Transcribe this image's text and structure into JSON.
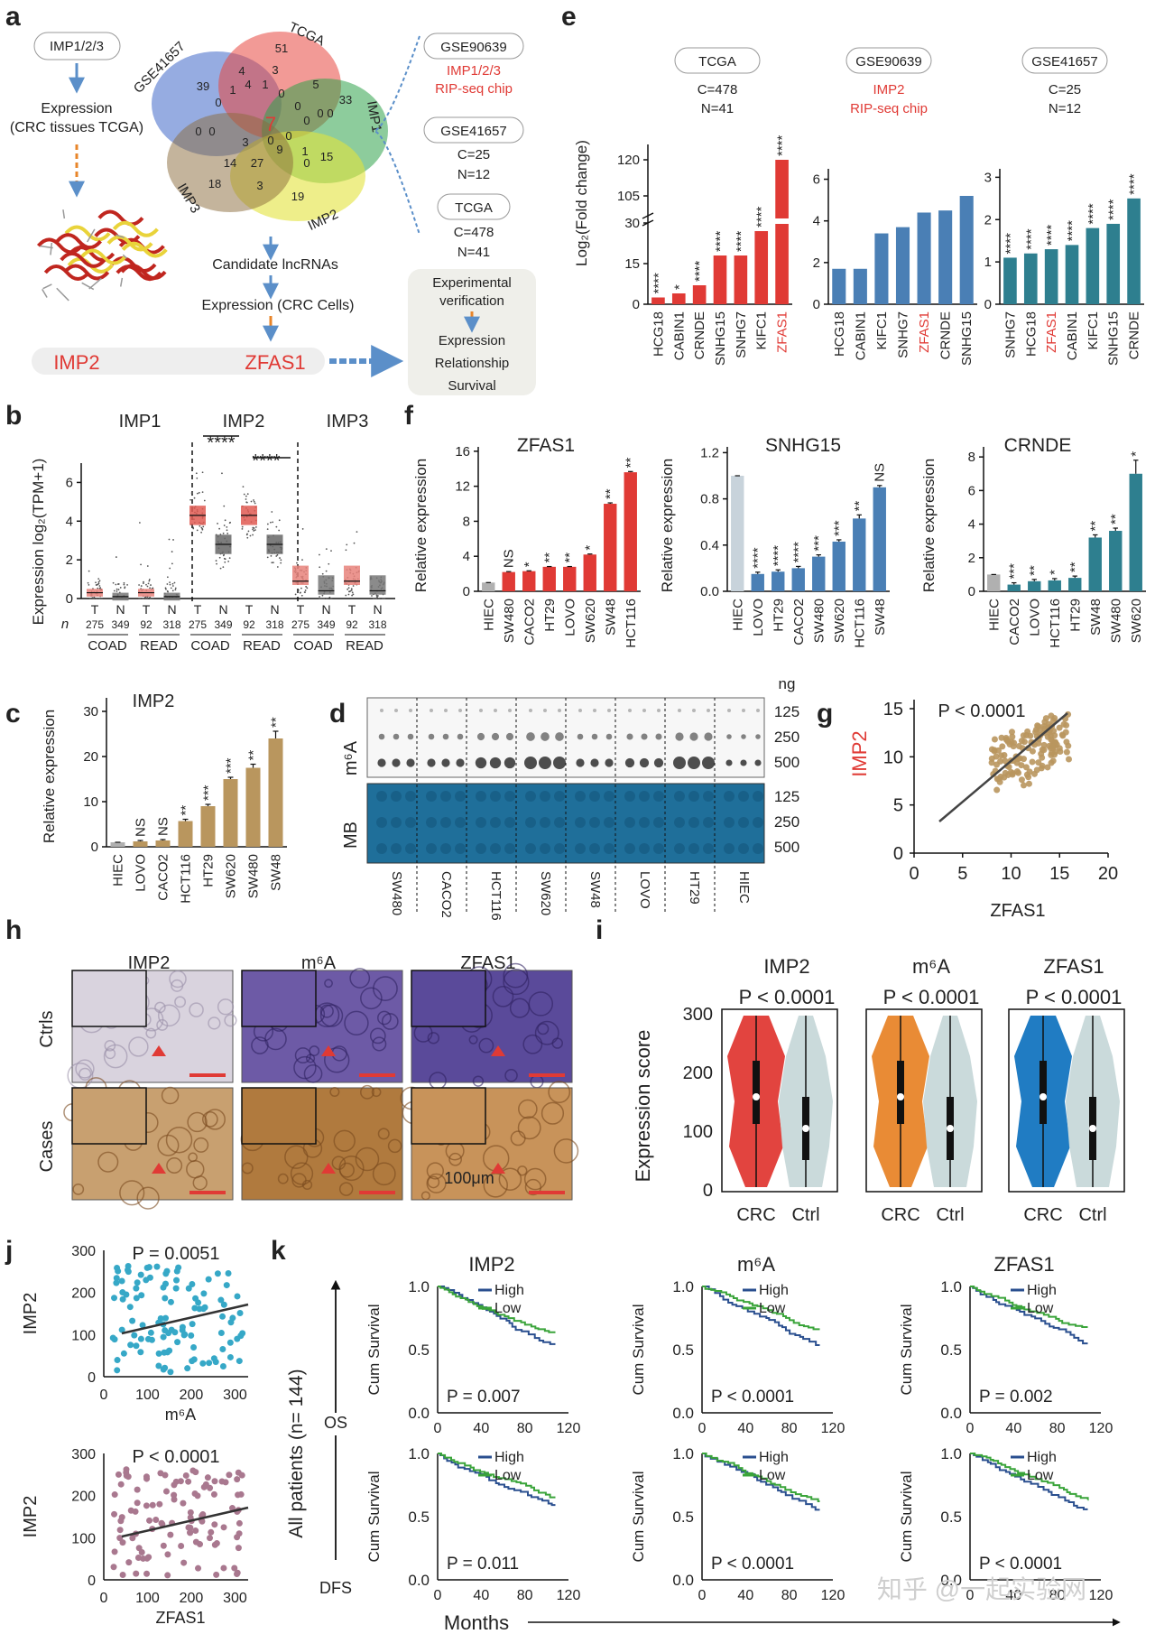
{
  "panels": [
    "a",
    "b",
    "c",
    "d",
    "e",
    "f",
    "g",
    "h",
    "i",
    "j",
    "k"
  ],
  "a": {
    "imp_box": "IMP1/2/3",
    "expression": "Expression",
    "expression_sub": "(CRC tissues TCGA)",
    "venn_labels": {
      "gse": "GSE41657",
      "tcga": "TCGA",
      "imp1": "IMP1",
      "imp2": "IMP2",
      "imp3": "IMP3"
    },
    "venn_numbers": [
      "39",
      "4",
      "51",
      "3",
      "5",
      "33",
      "0",
      "1",
      "4",
      "1",
      "0",
      "0",
      "0",
      "0",
      "0",
      "0",
      "7",
      "0",
      "0",
      "3",
      "9",
      "1",
      "15",
      "14",
      "27",
      "0",
      "18",
      "3",
      "0",
      "19"
    ],
    "candidate": "Candidate lncRNAs",
    "expression_cells": "Expression (CRC Cells)",
    "left_gene": "IMP2",
    "right_gene": "ZFAS1",
    "sources": {
      "gse90639": "GSE90639",
      "gse90639_note1": "IMP1/2/3",
      "gse90639_note2": "RIP-seq chip",
      "gse41657": "GSE41657",
      "gse41657_c": "C=25",
      "gse41657_n": "N=12",
      "tcga": "TCGA",
      "tcga_c": "C=478",
      "tcga_n": "N=41"
    },
    "verify_title1": "Experimental",
    "verify_title2": "verification",
    "verify_items": [
      "Expression",
      "Relationship",
      "Survival"
    ]
  },
  "e": {
    "ylabel": "Log₂(Fold change)",
    "heads": [
      {
        "title": "TCGA",
        "l1": "C=478",
        "l2": "N=41"
      },
      {
        "title": "GSE90639",
        "l1": "IMP2",
        "l2": "RIP-seq chip"
      },
      {
        "title": "GSE41657",
        "l1": "C=25",
        "l2": "N=12"
      }
    ],
    "y_ticks_1": [
      "0",
      "15",
      "30",
      "105",
      "120"
    ],
    "y_ticks_2": [
      "0",
      "2",
      "4",
      "6"
    ],
    "y_ticks_3": [
      "0",
      "1",
      "2",
      "3"
    ]
  },
  "b": {
    "titles": [
      "IMP1",
      "IMP2",
      "IMP3"
    ],
    "ylabel": "Expression log₂(TPM+1)",
    "y_ticks": [
      "0",
      "2",
      "4",
      "6"
    ],
    "n_label": "n",
    "tn": [
      "T",
      "N",
      "T",
      "N",
      "T",
      "N",
      "T",
      "N",
      "T",
      "N",
      "T",
      "N"
    ],
    "ns": [
      "275",
      "349",
      "92",
      "318",
      "275",
      "349",
      "92",
      "318",
      "275",
      "349",
      "92",
      "318"
    ],
    "groups": [
      "COAD",
      "READ",
      "COAD",
      "READ",
      "COAD",
      "READ"
    ],
    "sig": "****"
  },
  "c": {
    "title": "IMP2",
    "ylabel": "Relative expression",
    "y_ticks": [
      "0",
      "10",
      "20",
      "30"
    ]
  },
  "d": {
    "unit": "ng",
    "conc": [
      "125",
      "250",
      "500"
    ],
    "row1": "m⁶A",
    "row2": "MB",
    "lanes": [
      "SW480",
      "CACO2",
      "HCT116",
      "SW620",
      "SW48",
      "LOVO",
      "HT29",
      "HIEC"
    ]
  },
  "f": {
    "titles": [
      "ZFAS1",
      "SNHG15",
      "CRNDE"
    ],
    "ylabel": "Relative expression",
    "y_ticks_1": [
      "0",
      "4",
      "8",
      "12",
      "16"
    ],
    "y_ticks_2": [
      "0.0",
      "0.4",
      "0.8",
      "1.2"
    ],
    "y_ticks_3": [
      "0",
      "2",
      "4",
      "6",
      "8"
    ]
  },
  "g": {
    "p": "P < 0.0001",
    "ylabel": "IMP2",
    "xlabel": "ZFAS1",
    "x_ticks": [
      "0",
      "5",
      "10",
      "15",
      "20"
    ],
    "y_ticks": [
      "0",
      "5",
      "10",
      "15"
    ]
  },
  "h": {
    "cols": [
      "IMP2",
      "m⁶A",
      "ZFAS1"
    ],
    "rows": [
      "Ctrls",
      "Cases"
    ],
    "scale": "100μm"
  },
  "i": {
    "titles": [
      "IMP2",
      "m⁶A",
      "ZFAS1"
    ],
    "p": "P < 0.0001",
    "ylabel": "Expression score",
    "y_ticks": [
      "0",
      "100",
      "200",
      "300"
    ],
    "x": [
      "CRC",
      "Ctrl"
    ]
  },
  "j": {
    "p1": "P = 0.0051",
    "p2": "P < 0.0001",
    "ylabel": "IMP2",
    "xlabel1": "m⁶A",
    "xlabel2": "ZFAS1",
    "x_ticks": [
      "0",
      "100",
      "200",
      "300"
    ],
    "y_ticks": [
      "0",
      "100",
      "200",
      "300"
    ]
  },
  "k": {
    "titles": [
      "IMP2",
      "m⁶A",
      "ZFAS1"
    ],
    "legend": [
      "High",
      "Low"
    ],
    "ylabel": "Cum Survival",
    "y_ticks": [
      "0.0",
      "0.5",
      "1.0"
    ],
    "x_ticks": [
      "0",
      "40",
      "80",
      "120"
    ],
    "pvals_os": [
      "P = 0.007",
      "P < 0.0001",
      "P = 0.002"
    ],
    "pvals_dfs": [
      "P = 0.011",
      "P < 0.0001",
      "P < 0.0001"
    ],
    "side_label": "All patients (n= 144)",
    "os": "OS",
    "dfs": "DFS",
    "months": "Months"
  },
  "watermark": "知乎 @一起实验网",
  "colors": {
    "red": "#e03a35",
    "blue": "#4a7fb5",
    "teal": "#2e7f8f",
    "tan": "#b9965e",
    "grey": "#7d7d7d",
    "dark_blue": "#2a4f8f",
    "green": "#3aa43a",
    "orange": "#e8852a",
    "violet_blue": "#1475c0"
  },
  "chart_data": [
    {
      "panel": "e",
      "type": "bar",
      "title": "TCGA",
      "categories": [
        "HCG18",
        "CABIN1",
        "CRNDE",
        "SNHG15",
        "SNHG7",
        "KIFC1",
        "ZFAS1"
      ],
      "values": [
        2.5,
        4,
        7,
        18,
        18,
        27,
        120
      ],
      "ylabel": "Log₂(Fold change)",
      "annotations": [
        "****",
        "*",
        "****",
        "****",
        "****",
        "****",
        "****"
      ]
    },
    {
      "panel": "e",
      "type": "bar",
      "title": "GSE90639",
      "categories": [
        "HCG18",
        "CABIN1",
        "KIFC1",
        "SNHG7",
        "ZFAS1",
        "CRNDE",
        "SNHG15"
      ],
      "values": [
        1.7,
        1.7,
        3.4,
        3.7,
        4.4,
        4.5,
        5.2
      ]
    },
    {
      "panel": "e",
      "type": "bar",
      "title": "GSE41657",
      "categories": [
        "SNHG7",
        "HCG18",
        "ZFAS1",
        "CABIN1",
        "KIFC1",
        "SNHG15",
        "CRNDE"
      ],
      "values": [
        1.1,
        1.2,
        1.3,
        1.4,
        1.8,
        1.9,
        2.5
      ],
      "annotations": [
        "****",
        "****",
        "****",
        "****",
        "****",
        "****",
        "****"
      ]
    },
    {
      "panel": "c",
      "type": "bar",
      "title": "IMP2",
      "categories": [
        "HIEC",
        "LOVO",
        "CACO2",
        "HCT116",
        "HT29",
        "SW620",
        "SW480",
        "SW48"
      ],
      "values": [
        1,
        1.2,
        1.4,
        5.7,
        9,
        15,
        17.5,
        24
      ],
      "annotations": [
        "",
        "NS",
        "NS",
        "**",
        "***",
        "***",
        "**",
        "**"
      ]
    },
    {
      "panel": "f",
      "type": "bar",
      "title": "ZFAS1",
      "categories": [
        "HIEC",
        "SW480",
        "CACO2",
        "HT29",
        "LOVO",
        "SW620",
        "SW48",
        "HCT116"
      ],
      "values": [
        1,
        2.2,
        2.3,
        2.8,
        2.8,
        4.2,
        10,
        13.6
      ],
      "annotations": [
        "",
        "NS",
        "*",
        "**",
        "**",
        "*",
        "**",
        "**"
      ]
    },
    {
      "panel": "f",
      "type": "bar",
      "title": "SNHG15",
      "categories": [
        "HIEC",
        "LOVO",
        "HT29",
        "CACO2",
        "SW480",
        "SW620",
        "HCT116",
        "SW48"
      ],
      "values": [
        1.0,
        0.15,
        0.17,
        0.2,
        0.3,
        0.43,
        0.63,
        0.9
      ],
      "annotations": [
        "",
        "****",
        "****",
        "****",
        "***",
        "***",
        "**",
        "NS"
      ]
    },
    {
      "panel": "f",
      "type": "bar",
      "title": "CRNDE",
      "categories": [
        "HIEC",
        "CACO2",
        "LOVO",
        "HCT116",
        "HT29",
        "SW48",
        "SW480",
        "SW620"
      ],
      "values": [
        1,
        0.4,
        0.6,
        0.65,
        0.8,
        3.2,
        3.6,
        7
      ],
      "annotations": [
        "",
        "***",
        "**",
        "*",
        "**",
        "**",
        "**",
        "*"
      ]
    }
  ]
}
